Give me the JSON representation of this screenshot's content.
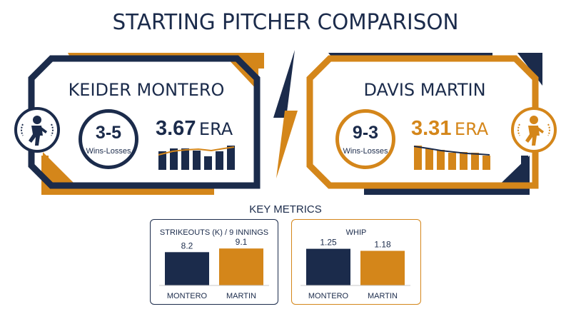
{
  "title": "STARTING PITCHER COMPARISON",
  "colors": {
    "navy": "#1b2b4b",
    "gold": "#d4861a"
  },
  "pitchers": [
    {
      "name": "KEIDER MONTERO",
      "record": "3-5",
      "record_label": "Wins-Losses",
      "era": "3.67",
      "era_unit": "ERA",
      "icon": "pitcher-icon"
    },
    {
      "name": "DAVIS MARTIN",
      "record": "9-3",
      "record_label": "Wins-Losses",
      "era": "3.31",
      "era_unit": "ERA",
      "icon": "pitcher-icon"
    }
  ],
  "key_metrics_title": "KEY METRICS",
  "chart_data": [
    {
      "type": "bar",
      "title": "STRIKEOUTS (K) / 9 INNINGS",
      "categories": [
        "MONTERO",
        "MARTIN"
      ],
      "values": [
        8.2,
        9.1
      ],
      "value_labels": [
        "8.2",
        "9.1"
      ],
      "ylim": [
        0,
        13
      ]
    },
    {
      "type": "bar",
      "title": "WHIP",
      "categories": [
        "MONTERO",
        "MARTIN"
      ],
      "values": [
        1.25,
        1.18
      ],
      "value_labels": [
        "1.25",
        "1.18"
      ],
      "ylim": [
        0,
        1.8
      ]
    }
  ]
}
